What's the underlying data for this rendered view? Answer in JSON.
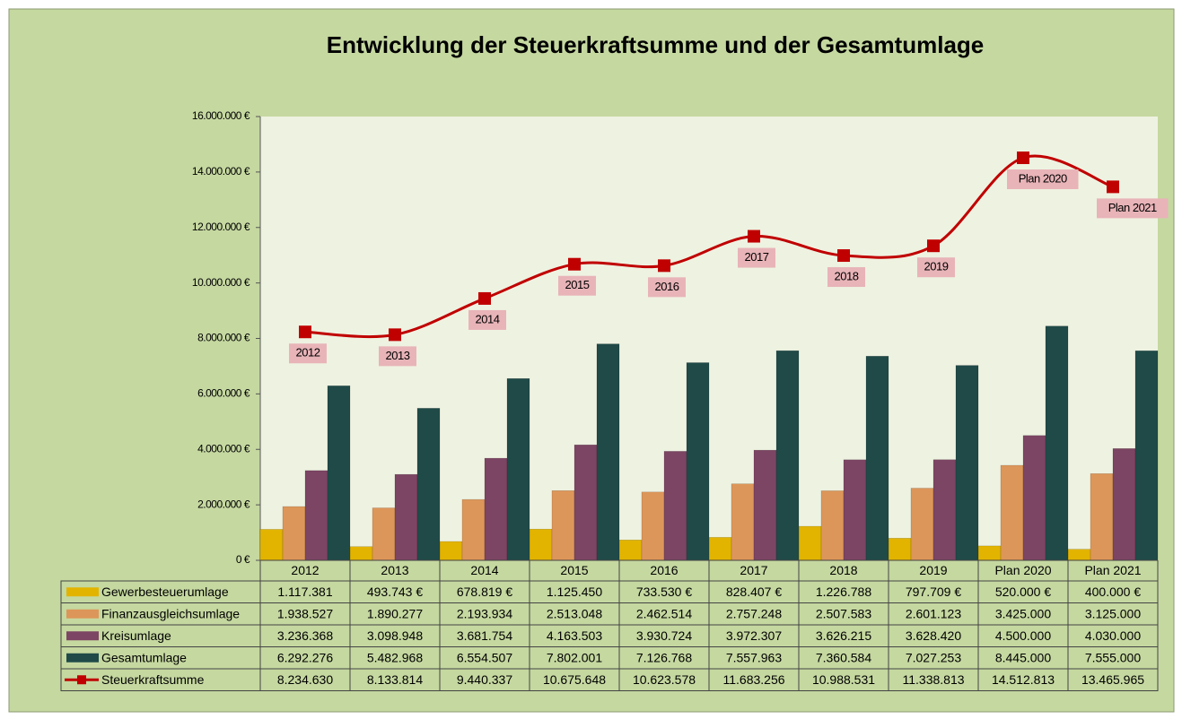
{
  "chart_data": {
    "type": "bar",
    "title": "Entwicklung der Steuerkraftsumme und der Gesamtumlage",
    "categories": [
      "2012",
      "2013",
      "2014",
      "2015",
      "2016",
      "2017",
      "2018",
      "2019",
      "Plan 2020",
      "Plan 2021"
    ],
    "series": [
      {
        "name": "Gewerbesteuerumlage",
        "type": "bar",
        "color": "#e2b400",
        "values": [
          1117381,
          493743,
          678819,
          1125450,
          733530,
          828407,
          1226788,
          797709,
          520000,
          400000
        ],
        "value_labels": [
          "1.117.381",
          "493.743 €",
          "678.819 €",
          "1.125.450",
          "733.530 €",
          "828.407 €",
          "1.226.788",
          "797.709 €",
          "520.000 €",
          "400.000 €"
        ]
      },
      {
        "name": "Finanzausgleichsumlage",
        "type": "bar",
        "color": "#dd9659",
        "values": [
          1938527,
          1890277,
          2193934,
          2513048,
          2462514,
          2757248,
          2507583,
          2601123,
          3425000,
          3125000
        ],
        "value_labels": [
          "1.938.527",
          "1.890.277",
          "2.193.934",
          "2.513.048",
          "2.462.514",
          "2.757.248",
          "2.507.583",
          "2.601.123",
          "3.425.000",
          "3.125.000"
        ]
      },
      {
        "name": "Kreisumlage",
        "type": "bar",
        "color": "#7c4563",
        "values": [
          3236368,
          3098948,
          3681754,
          4163503,
          3930724,
          3972307,
          3626215,
          3628420,
          4500000,
          4030000
        ],
        "value_labels": [
          "3.236.368",
          "3.098.948",
          "3.681.754",
          "4.163.503",
          "3.930.724",
          "3.972.307",
          "3.626.215",
          "3.628.420",
          "4.500.000",
          "4.030.000"
        ]
      },
      {
        "name": "Gesamtumlage",
        "type": "bar",
        "color": "#1f4a48",
        "values": [
          6292276,
          5482968,
          6554507,
          7802001,
          7126768,
          7557963,
          7360584,
          7027253,
          8445000,
          7555000
        ],
        "value_labels": [
          "6.292.276",
          "5.482.968",
          "6.554.507",
          "7.802.001",
          "7.126.768",
          "7.557.963",
          "7.360.584",
          "7.027.253",
          "8.445.000",
          "7.555.000"
        ]
      },
      {
        "name": "Steuerkraftsumme",
        "type": "line",
        "color": "#c00000",
        "values": [
          8234630,
          8133814,
          9440337,
          10675648,
          10623578,
          11683256,
          10988531,
          11338813,
          14512813,
          13465965
        ],
        "value_labels": [
          "8.234.630",
          "8.133.814",
          "9.440.337",
          "10.675.648",
          "10.623.578",
          "11.683.256",
          "10.988.531",
          "11.338.813",
          "14.512.813",
          "13.465.965"
        ]
      }
    ],
    "ylim": [
      0,
      16000000
    ],
    "yticks": [
      {
        "value": 0,
        "label": "0 €"
      },
      {
        "value": 2000000,
        "label": "2.000.000 €"
      },
      {
        "value": 4000000,
        "label": "4.000.000 €"
      },
      {
        "value": 6000000,
        "label": "6.000.000 €"
      },
      {
        "value": 8000000,
        "label": "8.000.000 €"
      },
      {
        "value": 10000000,
        "label": "10.000.000 €"
      },
      {
        "value": 12000000,
        "label": "12.000.000 €"
      },
      {
        "value": 14000000,
        "label": "14.000.000 €"
      },
      {
        "value": 16000000,
        "label": "16.000.000 €"
      }
    ],
    "grid": false,
    "legend": "table"
  }
}
